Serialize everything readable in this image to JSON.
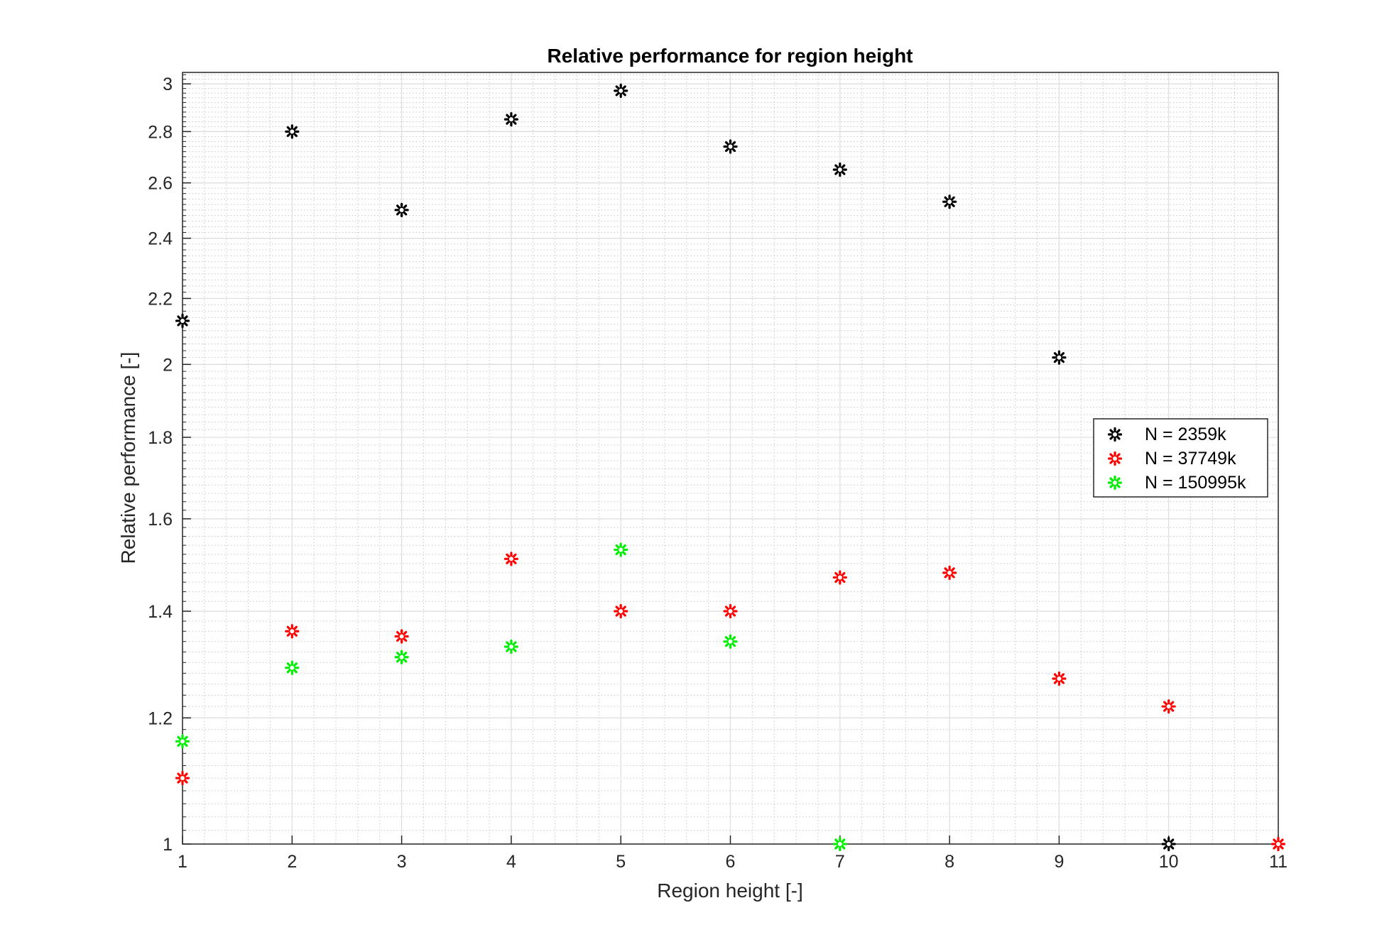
{
  "chart_data": {
    "type": "scatter",
    "title": "Relative performance for region height",
    "xlabel": "Region height [-]",
    "ylabel": "Relative performance [-]",
    "xlim": [
      1,
      11
    ],
    "ylim": [
      1,
      3.05
    ],
    "yscale": "log",
    "grid": true,
    "minor_grid": true,
    "legend_position": "right",
    "xticks": [
      1,
      2,
      3,
      4,
      5,
      6,
      7,
      8,
      9,
      10,
      11
    ],
    "yticks": [
      1,
      1.2,
      1.4,
      1.6,
      1.8,
      2,
      2.2,
      2.4,
      2.6,
      2.8,
      3
    ],
    "xtick_labels": [
      "1",
      "2",
      "3",
      "4",
      "5",
      "6",
      "7",
      "8",
      "9",
      "10",
      "11"
    ],
    "ytick_labels": [
      "1",
      "1.2",
      "1.4",
      "1.6",
      "1.8",
      "2",
      "2.2",
      "2.4",
      "2.6",
      "2.8",
      "3"
    ],
    "series": [
      {
        "name": "N = 2359k",
        "color": "#000000",
        "marker": "asterisk",
        "x": [
          1,
          2,
          3,
          4,
          5,
          6,
          7,
          8,
          9,
          10
        ],
        "y": [
          2.13,
          2.8,
          2.5,
          2.85,
          2.97,
          2.74,
          2.65,
          2.53,
          2.02,
          1.0
        ]
      },
      {
        "name": "N = 37749k",
        "color": "#ff0000",
        "marker": "asterisk",
        "x": [
          1,
          2,
          3,
          4,
          5,
          6,
          7,
          8,
          9,
          10,
          11
        ],
        "y": [
          1.1,
          1.36,
          1.35,
          1.51,
          1.4,
          1.4,
          1.47,
          1.48,
          1.27,
          1.22,
          1.0
        ]
      },
      {
        "name": "N = 150995k",
        "color": "#00ee00",
        "marker": "asterisk",
        "x": [
          1,
          2,
          3,
          4,
          5,
          6,
          7
        ],
        "y": [
          1.16,
          1.29,
          1.31,
          1.33,
          1.53,
          1.34,
          1.0
        ]
      }
    ]
  }
}
